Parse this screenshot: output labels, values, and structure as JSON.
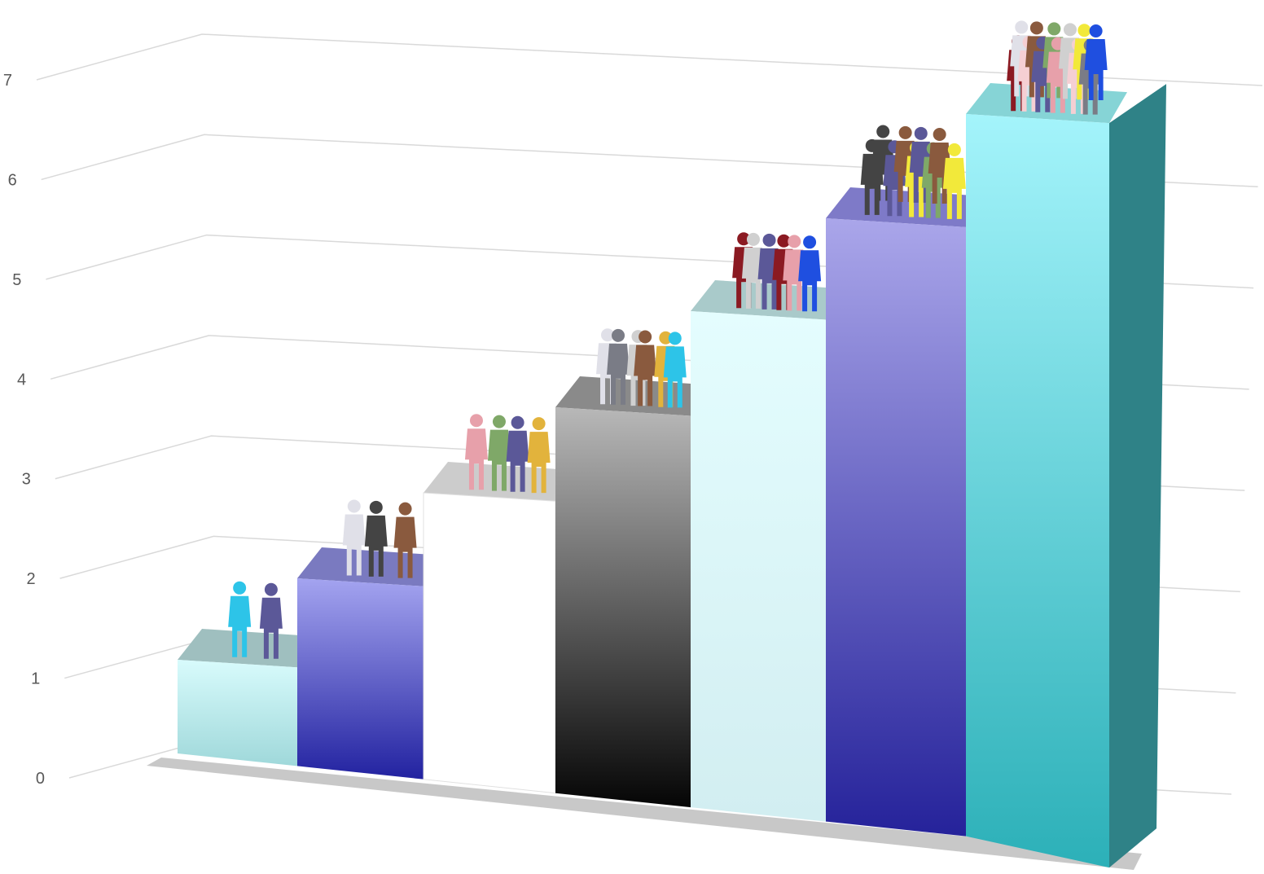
{
  "chart_data": {
    "type": "bar",
    "style": "3d-stepped-columns-with-people-figures",
    "title": "",
    "xlabel": "",
    "ylabel": "",
    "ylim": [
      0,
      7
    ],
    "yticks": [
      "0",
      "1",
      "2",
      "3",
      "4",
      "5",
      "6",
      "7"
    ],
    "grid": true,
    "legend": "none",
    "categories": [
      "",
      "",
      "",
      "",
      "",
      "",
      ""
    ],
    "values": [
      1,
      2,
      3,
      4,
      5,
      6,
      7
    ],
    "people_per_bar": [
      2,
      3,
      4,
      6,
      6,
      9,
      12
    ],
    "bar_colors": [
      {
        "top": "#d8fbfc",
        "bottom": "#9fd8da",
        "cap": "#9fbfbf",
        "side": "#7fb4b6"
      },
      {
        "top": "#a4a4f0",
        "bottom": "#2222a0",
        "cap": "#7a7ac0",
        "side": "#3a3a90"
      },
      {
        "top": "#ffffff",
        "bottom": "#ffffff",
        "cap": "#cccccc",
        "side": "#e6e6e6"
      },
      {
        "top": "#b8b8b8",
        "bottom": "#050505",
        "cap": "#8a8a8a",
        "side": "#2a2a2a"
      },
      {
        "top": "#e4fdfe",
        "bottom": "#d2eef1",
        "cap": "#a9caca",
        "side": "#bcdfe2"
      },
      {
        "top": "#aaa6ea",
        "bottom": "#25229a",
        "cap": "#7e7ac8",
        "side": "#3c3a92"
      },
      {
        "top": "#a4f4fb",
        "bottom": "#2cb0b8",
        "cap": "#86d4d6",
        "side": "#2f8287"
      }
    ],
    "figure_colors": [
      "#7a7c86",
      "#7fa868",
      "#e2b33c",
      "#5b5898",
      "#8b1a22",
      "#1f4fe0",
      "#8a5a3e",
      "#e0e0e8",
      "#2dc4e8",
      "#f2e93a",
      "#a040a8",
      "#e7a0aa",
      "#f5cfd3",
      "#444444",
      "#d0d0d0"
    ]
  }
}
